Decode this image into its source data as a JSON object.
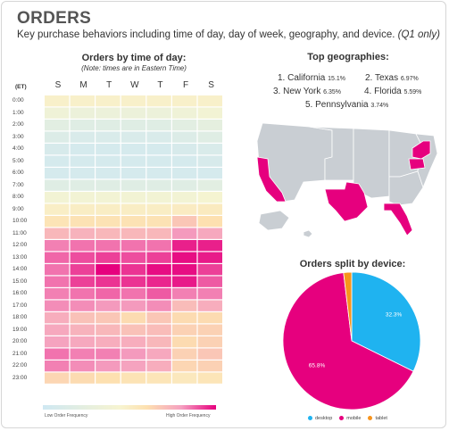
{
  "header": {
    "title": "ORDERS",
    "subtitle": "Key purchase behaviors including time of day, day of week, geography, and device.",
    "subtitle_note": "(Q1 only)"
  },
  "heatmap": {
    "title": "Orders by time of day:",
    "note": "(Note: times are in Eastern Time)",
    "corner_label": "(ET)",
    "legend_low": "Low Order Frequency",
    "legend_high": "High Order Frequency"
  },
  "geo": {
    "title": "Top geographies:",
    "items": [
      {
        "rank": "1.",
        "name": "California",
        "pct": "15.1%"
      },
      {
        "rank": "2.",
        "name": "Texas",
        "pct": "6.97%"
      },
      {
        "rank": "3.",
        "name": "New York",
        "pct": "6.35%"
      },
      {
        "rank": "4.",
        "name": "Florida",
        "pct": "5.59%"
      },
      {
        "rank": "5.",
        "name": "Pennsylvania",
        "pct": "3.74%"
      }
    ],
    "colors": {
      "highlight": "#e6007e",
      "base": "#c9ced3",
      "stroke": "#ffffff"
    }
  },
  "device": {
    "title": "Orders split by device:"
  },
  "chart_data": [
    {
      "type": "heatmap",
      "title": "Orders by time of day:",
      "x": [
        "S",
        "M",
        "T",
        "W",
        "T",
        "F",
        "S"
      ],
      "y": [
        "0:00",
        "1:00",
        "2:00",
        "3:00",
        "4:00",
        "5:00",
        "6:00",
        "7:00",
        "8:00",
        "9:00",
        "10:00",
        "11:00",
        "12:00",
        "13:00",
        "14:00",
        "15:00",
        "16:00",
        "17:00",
        "18:00",
        "19:00",
        "20:00",
        "21:00",
        "22:00",
        "23:00"
      ],
      "values": [
        [
          0.3,
          0.3,
          0.3,
          0.3,
          0.3,
          0.3,
          0.3
        ],
        [
          0.2,
          0.18,
          0.18,
          0.18,
          0.18,
          0.2,
          0.22
        ],
        [
          0.12,
          0.1,
          0.1,
          0.1,
          0.1,
          0.12,
          0.14
        ],
        [
          0.08,
          0.06,
          0.06,
          0.06,
          0.06,
          0.08,
          0.1
        ],
        [
          0.05,
          0.04,
          0.04,
          0.04,
          0.04,
          0.05,
          0.06
        ],
        [
          0.04,
          0.04,
          0.04,
          0.04,
          0.04,
          0.04,
          0.05
        ],
        [
          0.04,
          0.04,
          0.04,
          0.04,
          0.04,
          0.04,
          0.04
        ],
        [
          0.1,
          0.1,
          0.1,
          0.1,
          0.1,
          0.1,
          0.12
        ],
        [
          0.22,
          0.22,
          0.22,
          0.22,
          0.22,
          0.22,
          0.24
        ],
        [
          0.33,
          0.34,
          0.34,
          0.34,
          0.34,
          0.36,
          0.38
        ],
        [
          0.45,
          0.47,
          0.47,
          0.47,
          0.47,
          0.6,
          0.5
        ],
        [
          0.66,
          0.68,
          0.66,
          0.66,
          0.66,
          0.76,
          0.72
        ],
        [
          0.8,
          0.82,
          0.82,
          0.82,
          0.82,
          0.95,
          0.95
        ],
        [
          0.84,
          0.88,
          0.9,
          0.88,
          0.9,
          0.98,
          0.96
        ],
        [
          0.82,
          0.9,
          1.0,
          0.92,
          0.98,
          0.98,
          0.9
        ],
        [
          0.82,
          0.9,
          0.92,
          0.92,
          0.94,
          0.96,
          0.86
        ],
        [
          0.8,
          0.82,
          0.84,
          0.82,
          0.86,
          0.8,
          0.8
        ],
        [
          0.78,
          0.78,
          0.76,
          0.76,
          0.78,
          0.64,
          0.7
        ],
        [
          0.7,
          0.62,
          0.6,
          0.52,
          0.6,
          0.52,
          0.52
        ],
        [
          0.72,
          0.68,
          0.66,
          0.62,
          0.64,
          0.56,
          0.56
        ],
        [
          0.74,
          0.72,
          0.7,
          0.7,
          0.66,
          0.52,
          0.56
        ],
        [
          0.82,
          0.8,
          0.8,
          0.76,
          0.72,
          0.56,
          0.6
        ],
        [
          0.8,
          0.78,
          0.76,
          0.74,
          0.7,
          0.54,
          0.56
        ],
        [
          0.54,
          0.52,
          0.5,
          0.46,
          0.44,
          0.4,
          0.44
        ]
      ],
      "colorscale": [
        "#cfe8f2",
        "#f7f4d0",
        "#fde0b0",
        "#f5a0c0",
        "#e6007e"
      ],
      "legend": {
        "low": "Low Order Frequency",
        "high": "High Order Frequency",
        "placement": "bottom"
      }
    },
    {
      "type": "pie",
      "title": "Orders split by device:",
      "slices": [
        {
          "name": "desktop",
          "value": 32.3,
          "label": "32.3%",
          "color": "#1fb3f0"
        },
        {
          "name": "mobile",
          "value": 65.8,
          "label": "65.8%",
          "color": "#e6007e"
        },
        {
          "name": "tablet",
          "value": 1.9,
          "label": "",
          "color": "#f7941d"
        }
      ],
      "legend_placement": "bottom"
    }
  ]
}
